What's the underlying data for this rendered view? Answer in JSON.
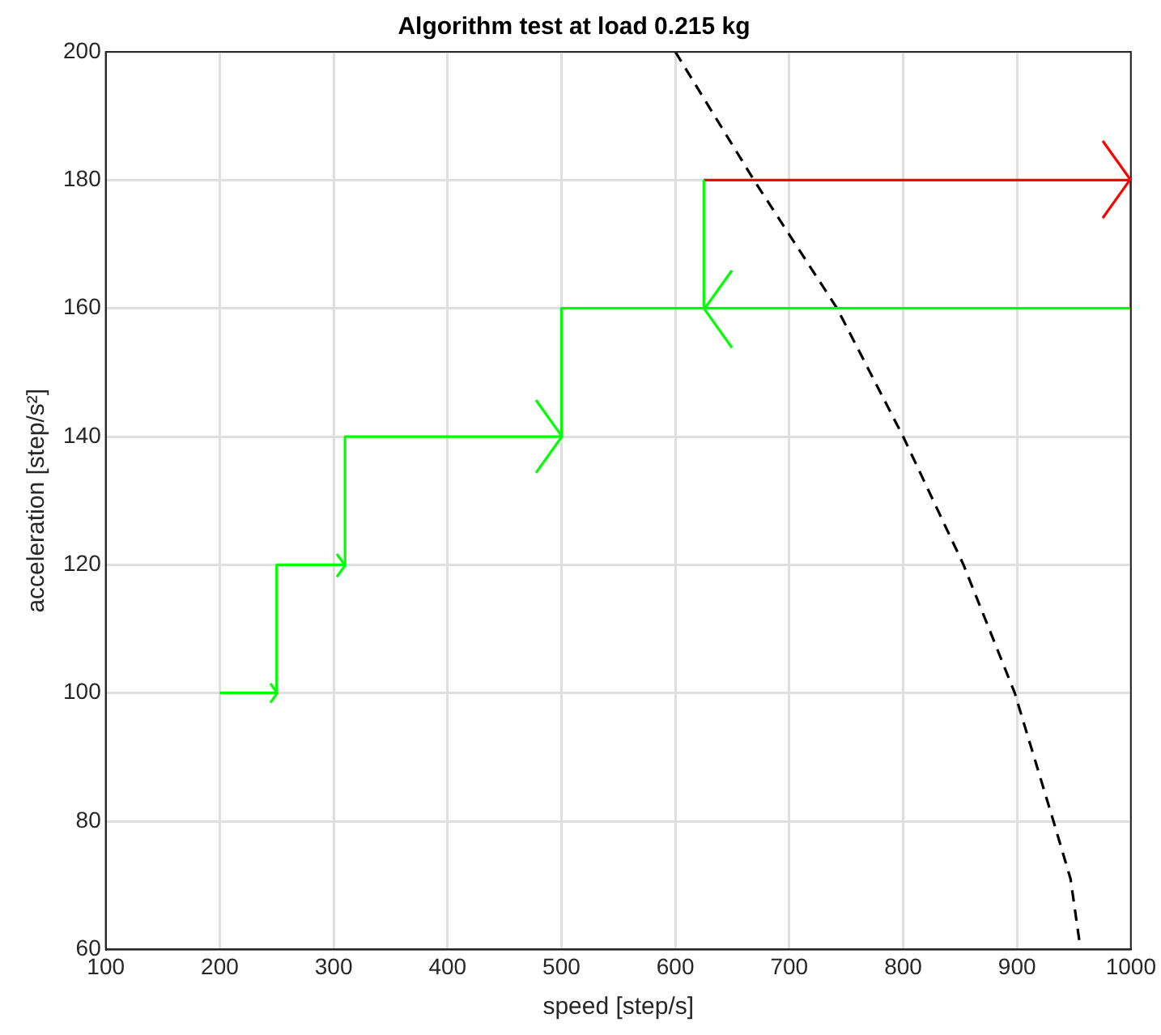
{
  "chart_data": {
    "type": "line",
    "title": "Algorithm test at load 0.215 kg",
    "xlabel": "speed [step/s]",
    "ylabel": "acceleration [step/s²]",
    "xlim": [
      100,
      1000
    ],
    "xticks": [
      100,
      200,
      300,
      400,
      500,
      600,
      700,
      800,
      900,
      1000
    ],
    "ylim": [
      60,
      200
    ],
    "yticks": [
      60,
      80,
      100,
      120,
      140,
      160,
      180,
      200
    ],
    "grid": true,
    "legend": false,
    "series": [
      {
        "color": "#00ff00",
        "line_style": "solid",
        "x": [
          200,
          250,
          250,
          310,
          310,
          500,
          500,
          1000,
          625,
          625
        ],
        "values": [
          100,
          100,
          120,
          120,
          140,
          140,
          160,
          160,
          160,
          180
        ]
      },
      {
        "color": "#ff0000",
        "line_style": "solid",
        "x": [
          625,
          1000,
          1000
        ],
        "values": [
          180,
          180,
          160
        ]
      },
      {
        "color": "#000000",
        "line_style": "dashed",
        "x": [
          600,
          669,
          742,
          800,
          853,
          898,
          932,
          947,
          955
        ],
        "values": [
          200,
          180,
          160,
          140,
          120,
          100,
          80,
          71,
          61
        ]
      }
    ]
  }
}
